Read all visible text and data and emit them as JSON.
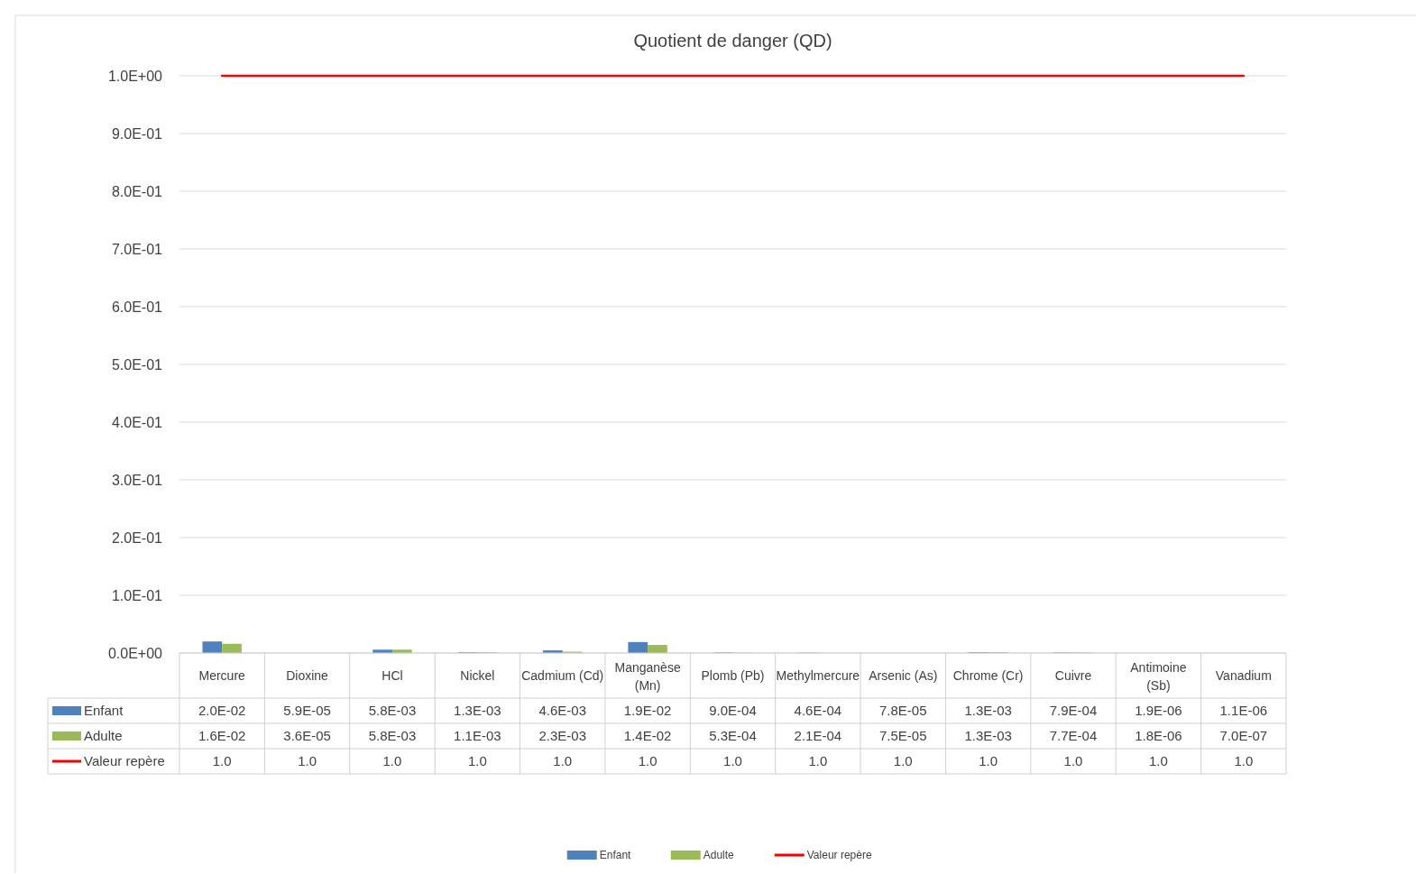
{
  "chart_data": {
    "type": "bar",
    "title": "Quotient de danger (QD)",
    "categories": [
      "Mercure",
      "Dioxine",
      "HCl",
      "Nickel",
      "Cadmium (Cd)",
      "Manganèse (Mn)",
      "Plomb (Pb)",
      "Methylmercure",
      "Arsenic (As)",
      "Chrome (Cr)",
      "Cuivre",
      "Antimoine (Sb)",
      "Vanadium"
    ],
    "series": [
      {
        "name": "Enfant",
        "color": "#4f81bd",
        "values": [
          0.02,
          5.9e-05,
          0.0058,
          0.0013,
          0.0046,
          0.019,
          0.0009,
          0.00046,
          7.8e-05,
          0.0013,
          0.00079,
          1.9e-06,
          1.1e-06
        ],
        "value_labels": [
          "2.0E-02",
          "5.9E-05",
          "5.8E-03",
          "1.3E-03",
          "4.6E-03",
          "1.9E-02",
          "9.0E-04",
          "4.6E-04",
          "7.8E-05",
          "1.3E-03",
          "7.9E-04",
          "1.9E-06",
          "1.1E-06"
        ]
      },
      {
        "name": "Adulte",
        "color": "#9bbb59",
        "values": [
          0.016,
          3.6e-05,
          0.0058,
          0.0011,
          0.0023,
          0.014,
          0.00053,
          0.00021,
          7.5e-05,
          0.0013,
          0.00077,
          1.8e-06,
          7e-07
        ],
        "value_labels": [
          "1.6E-02",
          "3.6E-05",
          "5.8E-03",
          "1.1E-03",
          "2.3E-03",
          "1.4E-02",
          "5.3E-04",
          "2.1E-04",
          "7.5E-05",
          "1.3E-03",
          "7.7E-04",
          "1.8E-06",
          "7.0E-07"
        ]
      },
      {
        "name": "Valeur repère",
        "type": "line",
        "color": "#ff0000",
        "values": [
          1,
          1,
          1,
          1,
          1,
          1,
          1,
          1,
          1,
          1,
          1,
          1,
          1
        ],
        "value_labels": [
          "1.0",
          "1.0",
          "1.0",
          "1.0",
          "1.0",
          "1.0",
          "1.0",
          "1.0",
          "1.0",
          "1.0",
          "1.0",
          "1.0",
          "1.0"
        ]
      }
    ],
    "ylim": [
      0,
      1
    ],
    "yticks": [
      {
        "value": 0,
        "label": "0.0E+00"
      },
      {
        "value": 0.1,
        "label": "1.0E-01"
      },
      {
        "value": 0.2,
        "label": "2.0E-01"
      },
      {
        "value": 0.3,
        "label": "3.0E-01"
      },
      {
        "value": 0.4,
        "label": "4.0E-01"
      },
      {
        "value": 0.5,
        "label": "5.0E-01"
      },
      {
        "value": 0.6,
        "label": "6.0E-01"
      },
      {
        "value": 0.7,
        "label": "7.0E-01"
      },
      {
        "value": 0.8,
        "label": "8.0E-01"
      },
      {
        "value": 0.9,
        "label": "9.0E-01"
      },
      {
        "value": 1,
        "label": "1.0E+00"
      }
    ],
    "grid": "y",
    "legend": "bottom"
  }
}
